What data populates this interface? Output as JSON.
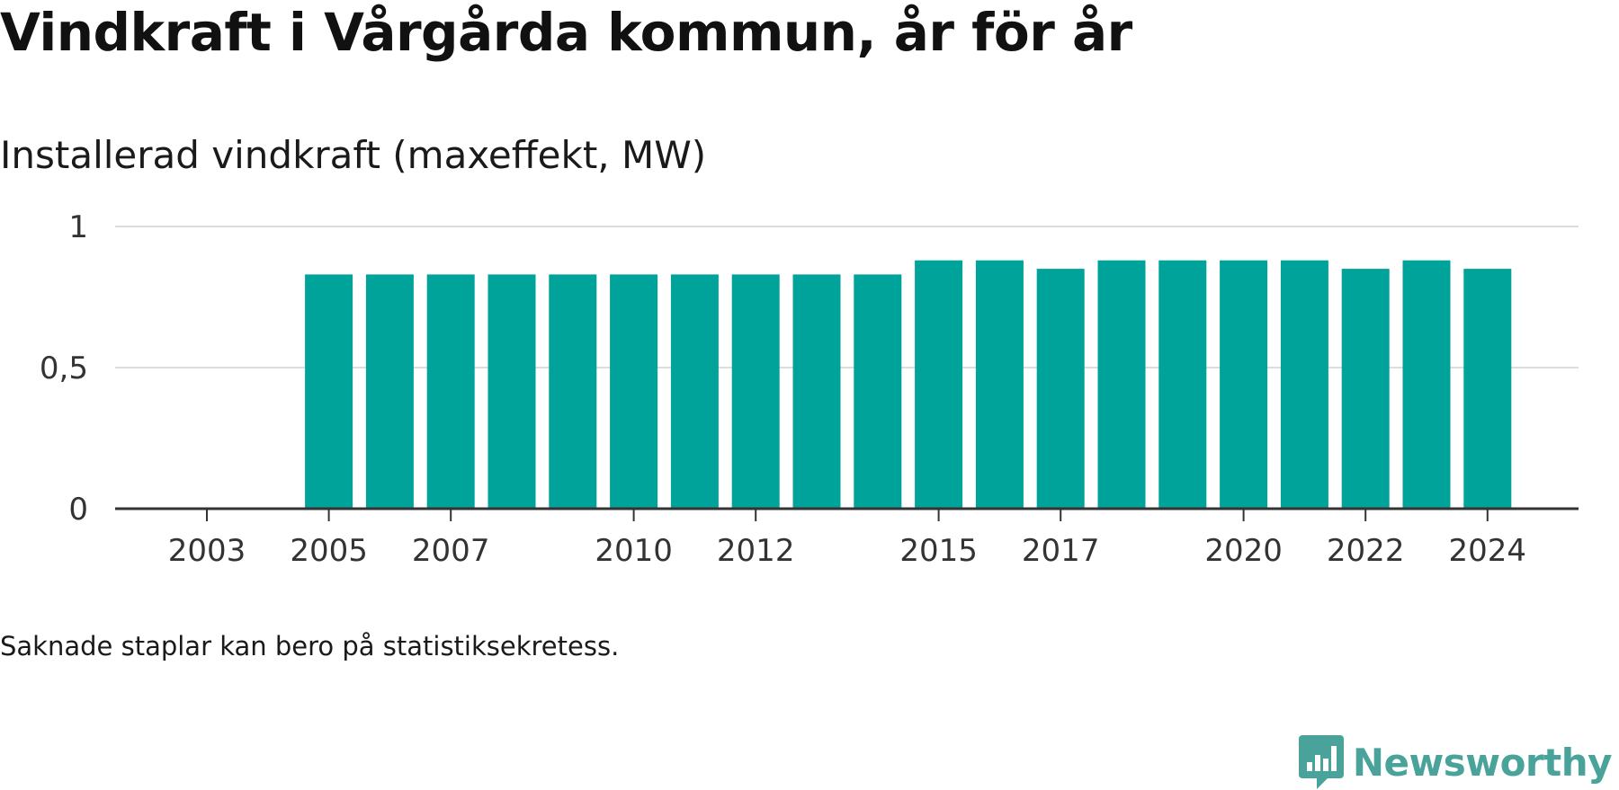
{
  "title": "Vindkraft i Vårgårda kommun, år för år",
  "subtitle": "Installerad vindkraft (maxeffekt, MW)",
  "footnote": "Saknade staplar kan bero på statistiksekretess.",
  "brand": {
    "name": "Newsworthy",
    "logo_icon": "bar-chart-speech-bubble-icon"
  },
  "colors": {
    "bar": "#00a39a",
    "grid": "#dddddd",
    "axis": "#333333",
    "brand": "#4aa39a"
  },
  "chart_data": {
    "type": "bar",
    "title": "Installerad vindkraft (maxeffekt, MW)",
    "xlabel": "",
    "ylabel": "",
    "categories": [
      2003,
      2004,
      2005,
      2006,
      2007,
      2008,
      2009,
      2010,
      2011,
      2012,
      2013,
      2014,
      2015,
      2016,
      2017,
      2018,
      2019,
      2020,
      2021,
      2022,
      2023,
      2024
    ],
    "values": [
      null,
      null,
      0.83,
      0.83,
      0.83,
      0.83,
      0.83,
      0.83,
      0.83,
      0.83,
      0.83,
      0.83,
      0.88,
      0.88,
      0.85,
      0.88,
      0.88,
      0.88,
      0.88,
      0.85,
      0.88,
      0.85
    ],
    "x_tick_labels": [
      "2003",
      "2005",
      "2007",
      "2010",
      "2012",
      "2015",
      "2017",
      "2020",
      "2022",
      "2024"
    ],
    "y_ticks": [
      0,
      0.5,
      1
    ],
    "y_tick_labels": [
      "0",
      "0,5",
      "1"
    ],
    "ylim": [
      0,
      1
    ],
    "grid": true,
    "legend": "none"
  }
}
